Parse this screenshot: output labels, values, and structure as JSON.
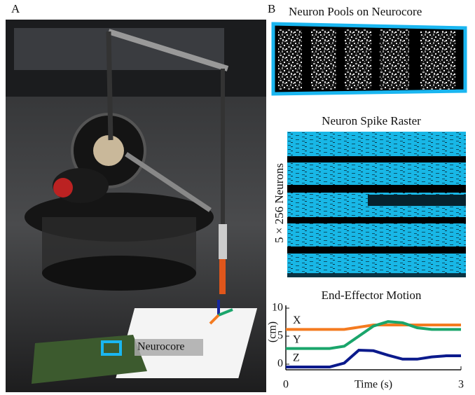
{
  "panel_labels": [
    "A",
    "B"
  ],
  "photo_label": "Neurocore",
  "pools_title": "Neuron Pools on Neurocore",
  "raster_title": "Neuron Spike Raster",
  "raster_ylabel": "5 × 256  Neurons",
  "chart_data": {
    "type": "line",
    "title": "End-Effector Motion",
    "x_label": "Time (s)",
    "y_label": "(cm)",
    "x": [
      0,
      0.25,
      0.5,
      0.75,
      1,
      1.25,
      1.5,
      1.75,
      2,
      2.25,
      2.5,
      2.75,
      3
    ],
    "series": [
      {
        "name": "X",
        "color": "#f47b20",
        "values": [
          6.2,
          6.2,
          6.2,
          6.2,
          6.2,
          6.6,
          7,
          7,
          7,
          7,
          7,
          7,
          7
        ]
      },
      {
        "name": "Y",
        "color": "#1aa56b",
        "values": [
          2.8,
          2.8,
          2.8,
          2.8,
          3.2,
          5,
          6.8,
          7.6,
          7.4,
          6.5,
          6.2,
          6.2,
          6.2
        ]
      },
      {
        "name": "Z",
        "color": "#0b1a8c",
        "values": [
          -0.5,
          -0.5,
          -0.5,
          -0.5,
          0.2,
          2.5,
          2.4,
          1.6,
          0.9,
          0.9,
          1.3,
          1.5,
          1.5
        ]
      }
    ],
    "xlim": [
      0,
      3
    ],
    "ylim": [
      -1,
      10
    ],
    "xticks": [
      0,
      3
    ],
    "yticks": [
      0,
      5,
      10
    ]
  }
}
